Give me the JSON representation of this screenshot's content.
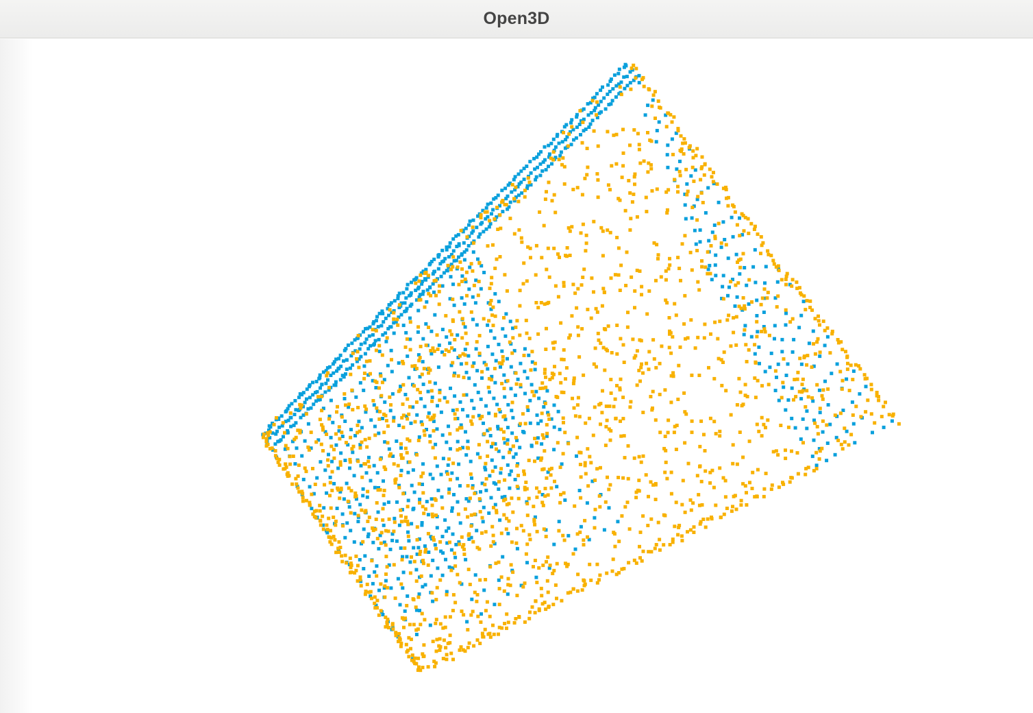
{
  "window": {
    "title": "Open3D"
  },
  "point_cloud": {
    "colors": {
      "source": "#f8b100",
      "target": "#0aa0dc"
    },
    "point_size": 5,
    "random_seed": 7
  }
}
